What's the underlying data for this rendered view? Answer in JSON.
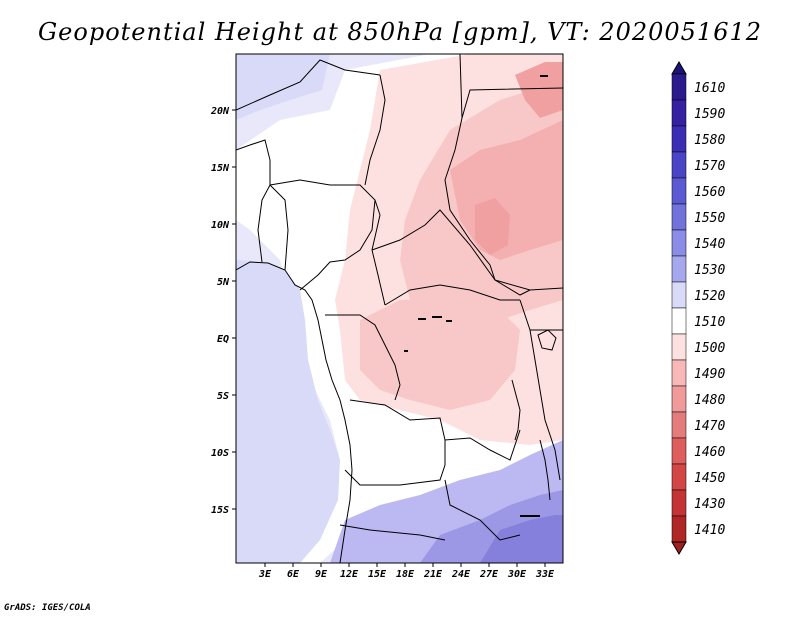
{
  "title": "Geopotential Height at 850hPa [gpm], VT: 2020051612",
  "footer": "GrADS: IGES/COLA",
  "map": {
    "variable": "Geopotential Height at 850hPa",
    "units": "gpm",
    "valid_time": "2020051612",
    "region": "Central Africa",
    "longitude_ticks": [
      "3E",
      "6E",
      "9E",
      "12E",
      "15E",
      "18E",
      "21E",
      "24E",
      "27E",
      "30E",
      "33E"
    ],
    "latitude_ticks": [
      "20N",
      "15N",
      "10N",
      "5N",
      "EQ",
      "5S",
      "10S",
      "15S"
    ]
  },
  "colorbar": {
    "levels": [
      {
        "label": "1610",
        "color": "#2a1a8c"
      },
      {
        "label": "1590",
        "color": "#3420a0"
      },
      {
        "label": "1580",
        "color": "#3c2eb4"
      },
      {
        "label": "1570",
        "color": "#4a44c6"
      },
      {
        "label": "1560",
        "color": "#5c5ad2"
      },
      {
        "label": "1550",
        "color": "#7272dc"
      },
      {
        "label": "1540",
        "color": "#8a8ce6"
      },
      {
        "label": "1530",
        "color": "#a6a8ee"
      },
      {
        "label": "1520",
        "color": "#d8daf8"
      },
      {
        "label": "1510",
        "color": "#ffffff"
      },
      {
        "label": "1500",
        "color": "#fde0e0"
      },
      {
        "label": "1490",
        "color": "#f8b8b8"
      },
      {
        "label": "1480",
        "color": "#f09a9a"
      },
      {
        "label": "1470",
        "color": "#e57c7c"
      },
      {
        "label": "1460",
        "color": "#de5e5e"
      },
      {
        "label": "1450",
        "color": "#d24646"
      },
      {
        "label": "1430",
        "color": "#c43434"
      },
      {
        "label": "1410",
        "color": "#b02626"
      }
    ],
    "top_color": "#1c1278",
    "bottom_color": "#a02020"
  },
  "field_colors": {
    "ocean_blue": "#d8daf8",
    "light_blue": "#e8e8fa",
    "white": "#ffffff",
    "pink_light": "#fde0e0",
    "pink": "#f8c8c8",
    "pink_mid": "#f4b0b0",
    "red_mid": "#f0a0a0",
    "purple_light": "#bcb8f2",
    "purple": "#9c98e6",
    "purple_dark": "#8480dc"
  }
}
